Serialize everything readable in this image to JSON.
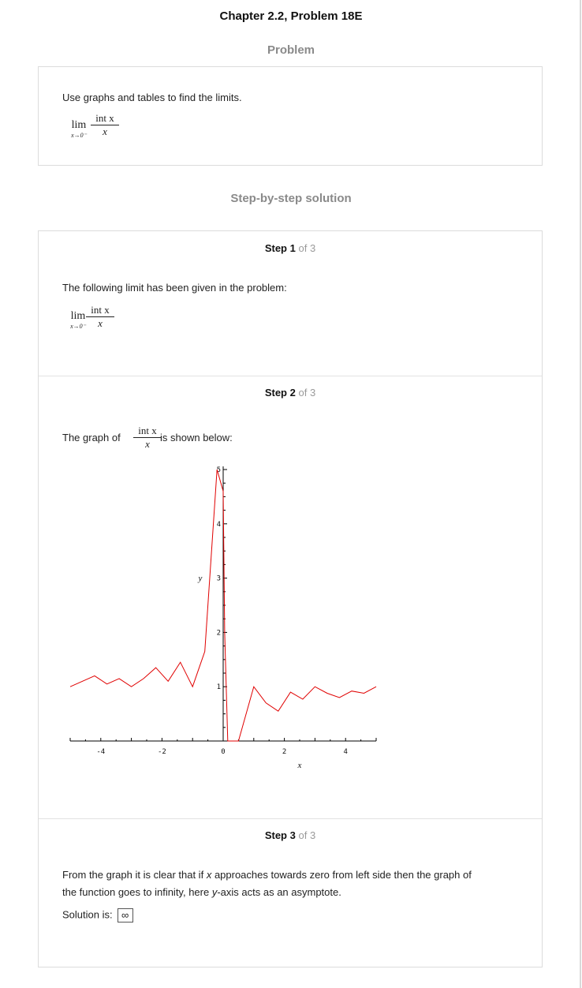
{
  "page_title": "Chapter 2.2, Problem 18E",
  "problem_heading": "Problem",
  "problem": {
    "instruction": "Use graphs and tables to find the limits.",
    "lim_word": "lim",
    "lim_sub": "x→0⁻",
    "numerator": "int x",
    "denominator": "x"
  },
  "solution_heading": "Step-by-step solution",
  "steps": [
    {
      "label": "Step",
      "number": "1",
      "of": "of 3",
      "text": "The following limit has been given in the problem:",
      "lim_word": "lim",
      "lim_sub": "x→0⁻",
      "numerator": "int x",
      "denominator": "x"
    },
    {
      "label": "Step",
      "number": "2",
      "of": "of 3",
      "text_before": "The graph of",
      "numerator": "int x",
      "denominator": "x",
      "text_after": "is shown below:"
    },
    {
      "label": "Step",
      "number": "3",
      "of": "of 3",
      "p1": "From the graph it is clear that if",
      "p1_var": "x",
      "p2": "approaches towards zero from left side then the graph of",
      "p3": "the function goes to infinity, here",
      "p3_var": "y",
      "p4": "-axis acts as an asymptote.",
      "solution_label": "Solution is:",
      "solution_value": "∞"
    }
  ],
  "chart_data": {
    "type": "line",
    "xlabel": "x",
    "ylabel": "y",
    "xlim": [
      -5,
      5
    ],
    "ylim": [
      0,
      5
    ],
    "x_ticks": [
      "-4",
      "-2",
      "0",
      "2",
      "4"
    ],
    "y_ticks": [
      "1",
      "2",
      "3",
      "4",
      "5"
    ],
    "line_color": "#e00000",
    "series": [
      {
        "x": [
          -5.0,
          -4.6,
          -4.2,
          -3.8,
          -3.4,
          -3.0,
          -2.6,
          -2.2,
          -1.8,
          -1.4,
          -1.0,
          -0.6,
          -0.2,
          0.0,
          0.05,
          0.15,
          0.5,
          1.0,
          1.4,
          1.8,
          2.2,
          2.6,
          3.0,
          3.4,
          3.8,
          4.2,
          4.6,
          5.0
        ],
        "y": [
          1.0,
          1.1,
          1.2,
          1.05,
          1.15,
          1.0,
          1.15,
          1.35,
          1.1,
          1.45,
          1.0,
          1.65,
          5.0,
          4.6,
          2.0,
          0.0,
          0.0,
          1.0,
          0.7,
          0.55,
          0.9,
          0.77,
          1.0,
          0.88,
          0.8,
          0.92,
          0.88,
          1.0
        ]
      }
    ]
  }
}
